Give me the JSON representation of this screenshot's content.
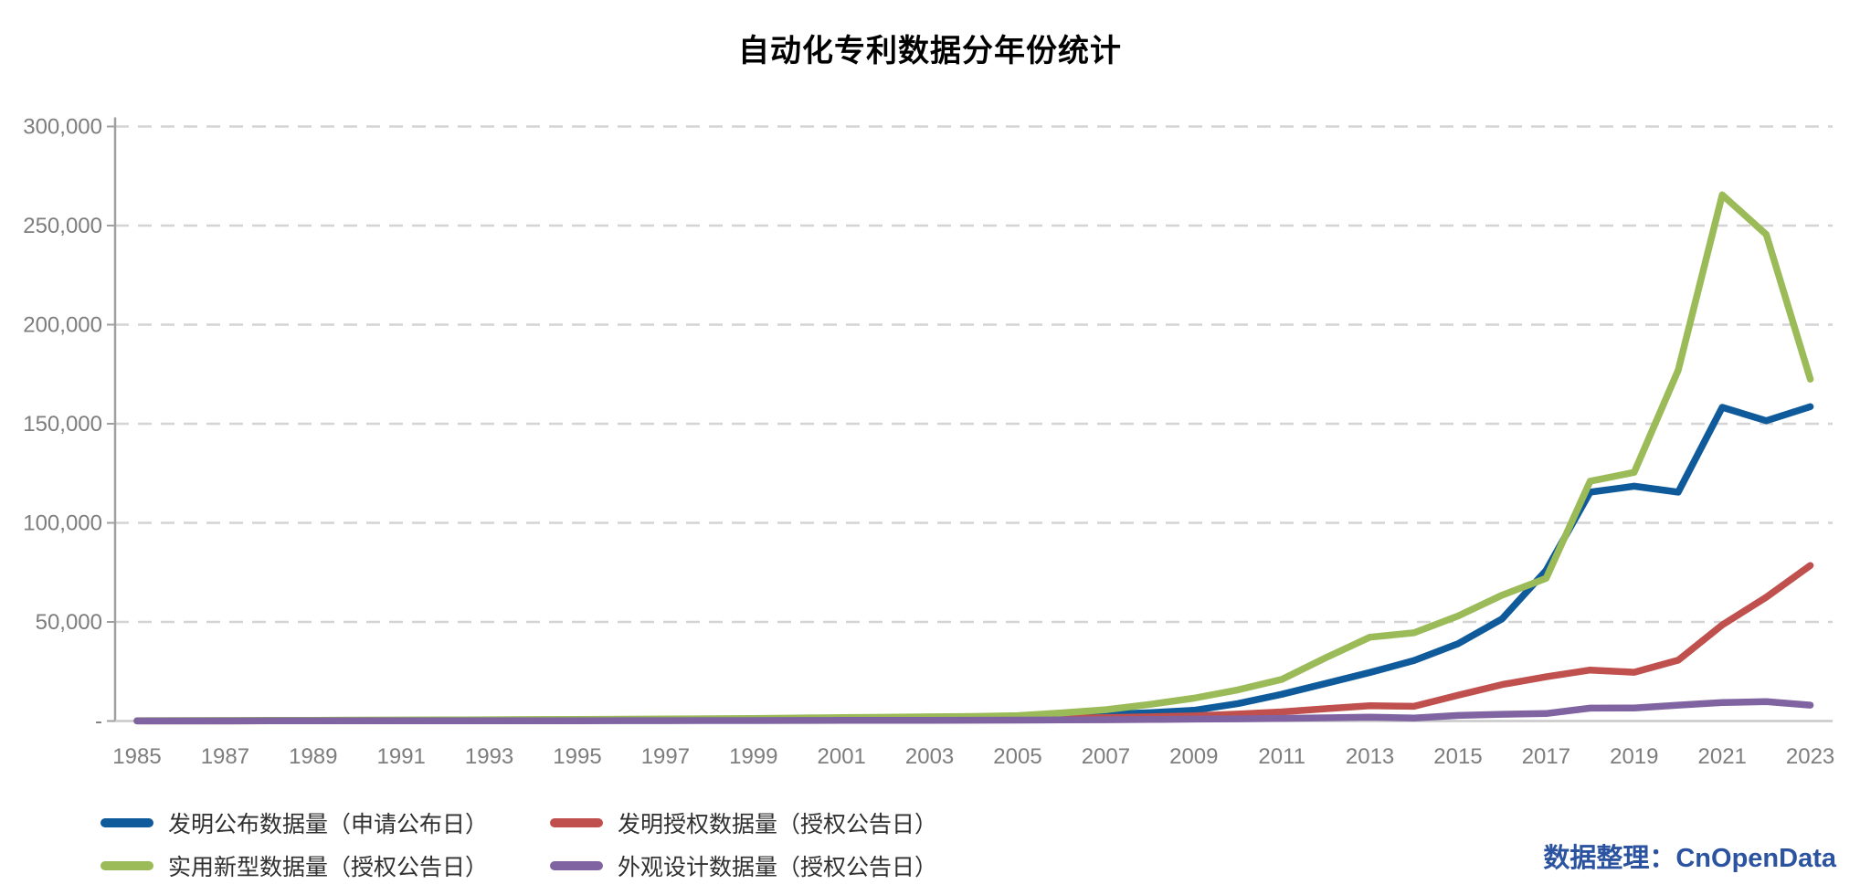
{
  "title": "自动化专利数据分年份统计",
  "credit": "数据整理：CnOpenData",
  "credit_color": "#2b53a0",
  "chart_data": {
    "type": "line",
    "x": [
      1985,
      1986,
      1987,
      1988,
      1989,
      1990,
      1991,
      1992,
      1993,
      1994,
      1995,
      1996,
      1997,
      1998,
      1999,
      2000,
      2001,
      2002,
      2003,
      2004,
      2005,
      2006,
      2007,
      2008,
      2009,
      2010,
      2011,
      2012,
      2013,
      2014,
      2015,
      2016,
      2017,
      2018,
      2019,
      2020,
      2021,
      2022,
      2023
    ],
    "series": [
      {
        "name": "发明公布数据量（申请公布日）",
        "color": "#0e5a9b",
        "values": [
          100,
          120,
          140,
          160,
          190,
          220,
          250,
          280,
          320,
          370,
          420,
          480,
          560,
          650,
          760,
          900,
          1100,
          1400,
          1800,
          2100,
          2400,
          2700,
          3400,
          4200,
          5400,
          8800,
          13500,
          19000,
          24500,
          30500,
          39000,
          51500,
          76000,
          115500,
          118500,
          115500,
          158300,
          151500,
          158600
        ]
      },
      {
        "name": "发明授权数据量（授权公告日）",
        "color": "#c0504d",
        "values": [
          30,
          40,
          60,
          80,
          100,
          120,
          140,
          170,
          200,
          230,
          270,
          310,
          360,
          430,
          510,
          600,
          700,
          850,
          1000,
          1100,
          1200,
          1400,
          1700,
          2100,
          2600,
          3500,
          4600,
          6200,
          7700,
          7400,
          13000,
          18400,
          22300,
          25700,
          24600,
          30700,
          48500,
          62500,
          78500
        ]
      },
      {
        "name": "实用新型数据量（授权公告日）",
        "color": "#9bbb59",
        "values": [
          200,
          240,
          280,
          330,
          380,
          440,
          500,
          570,
          640,
          720,
          810,
          910,
          1020,
          1150,
          1300,
          1500,
          1700,
          1900,
          2100,
          2300,
          2700,
          4100,
          5700,
          8400,
          11500,
          15700,
          21000,
          32000,
          42300,
          44500,
          53000,
          63500,
          72000,
          121000,
          125500,
          177000,
          265500,
          245500,
          172500
        ]
      },
      {
        "name": "外观设计数据量（授权公告日）",
        "color": "#8064a2",
        "values": [
          50,
          55,
          60,
          70,
          80,
          90,
          100,
          110,
          120,
          135,
          150,
          170,
          190,
          210,
          240,
          270,
          300,
          340,
          380,
          430,
          480,
          550,
          650,
          800,
          950,
          1100,
          1350,
          1600,
          2000,
          1500,
          2800,
          3400,
          3800,
          6500,
          6600,
          8000,
          9300,
          9800,
          8000
        ]
      }
    ],
    "ylim": [
      0,
      300000
    ],
    "yticks": [
      {
        "value": 300000,
        "label": "300,000"
      },
      {
        "value": 250000,
        "label": "250,000"
      },
      {
        "value": 200000,
        "label": "200,000"
      },
      {
        "value": 150000,
        "label": "150,000"
      },
      {
        "value": 100000,
        "label": "100,000"
      },
      {
        "value": 50000,
        "label": "50,000"
      },
      {
        "value": 0,
        "label": "-"
      }
    ],
    "xtick_years": [
      1985,
      1987,
      1989,
      1991,
      1993,
      1995,
      1997,
      1999,
      2001,
      2003,
      2005,
      2007,
      2009,
      2011,
      2013,
      2015,
      2017,
      2019,
      2021,
      2023
    ],
    "grid": {
      "show": true,
      "dashed": true,
      "color": "#d4d4d4"
    },
    "axis_color": "#a0a0a0",
    "xaxis_line_color": "#c9c9c9",
    "tick_label_color": "#7d7d7d",
    "legend_position": "bottom-left"
  }
}
